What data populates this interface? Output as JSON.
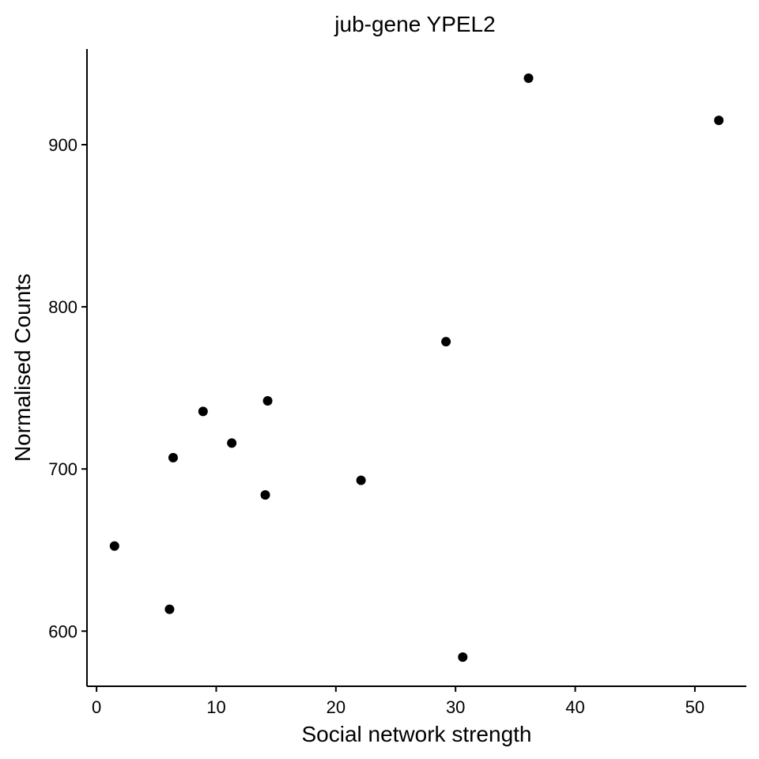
{
  "chart_data": {
    "type": "scatter",
    "title": "jub-gene YPEL2",
    "xlabel": "Social network strength",
    "ylabel": "Normalised Counts",
    "xlim": [
      -0.8,
      54.3
    ],
    "ylim": [
      566,
      959
    ],
    "x_ticks": [
      0,
      10,
      20,
      30,
      40,
      50
    ],
    "y_ticks": [
      600,
      700,
      800,
      900
    ],
    "grid": false,
    "legend": "none",
    "point_color": "#000000",
    "points": [
      {
        "x": 1.5,
        "y": 652.5
      },
      {
        "x": 6.1,
        "y": 613.5
      },
      {
        "x": 6.4,
        "y": 707
      },
      {
        "x": 8.9,
        "y": 735.5
      },
      {
        "x": 11.3,
        "y": 716
      },
      {
        "x": 14.1,
        "y": 684
      },
      {
        "x": 14.3,
        "y": 742
      },
      {
        "x": 22.1,
        "y": 693
      },
      {
        "x": 29.2,
        "y": 778.5
      },
      {
        "x": 30.6,
        "y": 584
      },
      {
        "x": 36.1,
        "y": 941
      },
      {
        "x": 52.0,
        "y": 915
      }
    ]
  }
}
